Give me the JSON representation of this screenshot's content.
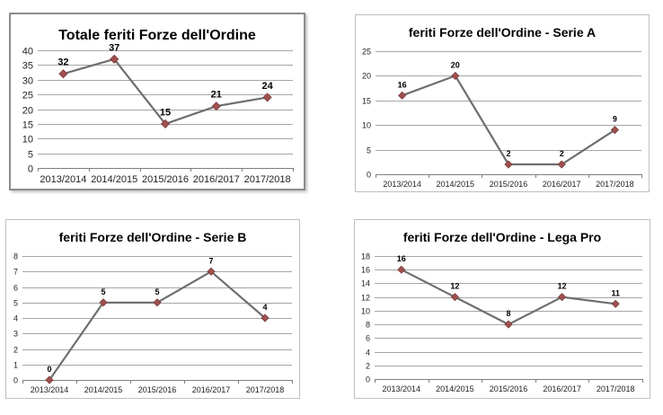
{
  "colors": {
    "line": "#6e6e6e",
    "marker": "#a0504e",
    "marker_stroke": "#7a3b39"
  },
  "chart_data": [
    {
      "type": "line",
      "title": "Totale feriti Forze dell'Ordine",
      "categories": [
        "2013/2014",
        "2014/2015",
        "2015/2016",
        "2016/2017",
        "2017/2018"
      ],
      "values": [
        32,
        37,
        15,
        21,
        24
      ],
      "ylim": [
        0,
        40
      ],
      "yticks": [
        0,
        5,
        10,
        15,
        20,
        25,
        30,
        35,
        40
      ],
      "grid": true
    },
    {
      "type": "line",
      "title": "feriti Forze dell'Ordine - Serie A",
      "categories": [
        "2013/2014",
        "2014/2015",
        "2015/2016",
        "2016/2017",
        "2017/2018"
      ],
      "values": [
        16,
        20,
        2,
        2,
        9
      ],
      "ylim": [
        0,
        25
      ],
      "yticks": [
        0,
        5,
        10,
        15,
        20,
        25
      ],
      "grid": true
    },
    {
      "type": "line",
      "title": "feriti Forze dell'Ordine - Serie B",
      "categories": [
        "2013/2014",
        "2014/2015",
        "2015/2016",
        "2016/2017",
        "2017/2018"
      ],
      "values": [
        0,
        5,
        5,
        7,
        4
      ],
      "ylim": [
        0,
        8
      ],
      "yticks": [
        0,
        1,
        2,
        3,
        4,
        5,
        6,
        7,
        8
      ],
      "grid": true
    },
    {
      "type": "line",
      "title": "feriti Forze dell'Ordine - Lega Pro",
      "categories": [
        "2013/2014",
        "2014/2015",
        "2015/2016",
        "2016/2017",
        "2017/2018"
      ],
      "values": [
        16,
        12,
        8,
        12,
        11
      ],
      "ylim": [
        0,
        18
      ],
      "yticks": [
        0,
        2,
        4,
        6,
        8,
        10,
        12,
        14,
        16,
        18
      ],
      "grid": true
    }
  ]
}
